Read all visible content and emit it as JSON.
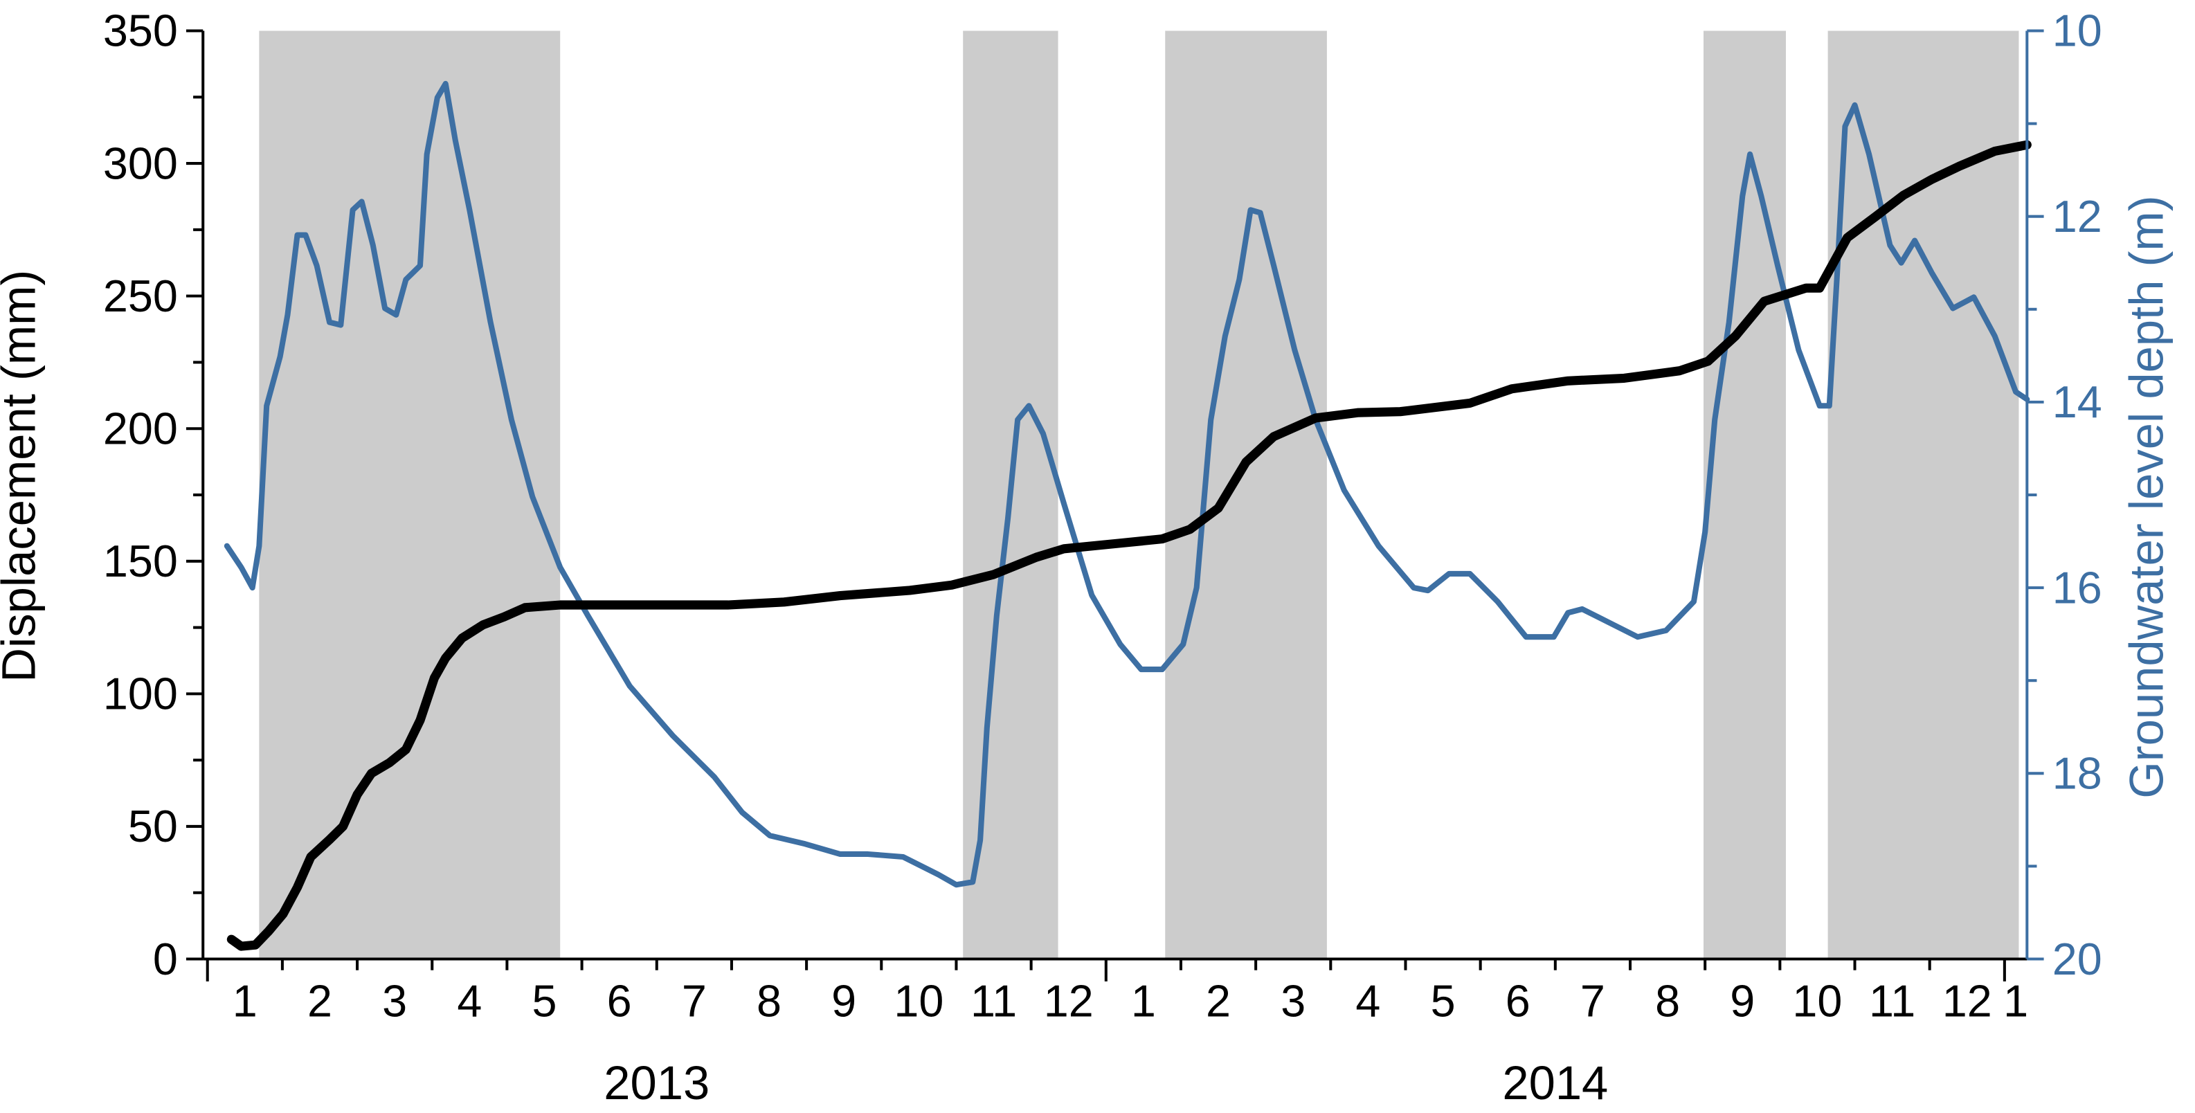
{
  "chart_data": {
    "type": "line",
    "y_label": "Displacement (mm)",
    "y2_label": "Groundwater level depth (m)",
    "xlim": [
      -0.06,
      24.3
    ],
    "xticks": [
      {
        "value": 0.5,
        "label": "1"
      },
      {
        "value": 1.5,
        "label": "2"
      },
      {
        "value": 2.5,
        "label": "3"
      },
      {
        "value": 3.5,
        "label": "4"
      },
      {
        "value": 4.5,
        "label": "5"
      },
      {
        "value": 5.5,
        "label": "6"
      },
      {
        "value": 6.5,
        "label": "7"
      },
      {
        "value": 7.5,
        "label": "8"
      },
      {
        "value": 8.5,
        "label": "9"
      },
      {
        "value": 9.5,
        "label": "10"
      },
      {
        "value": 10.5,
        "label": "11"
      },
      {
        "value": 11.5,
        "label": "12"
      },
      {
        "value": 12.5,
        "label": "1"
      },
      {
        "value": 13.5,
        "label": "2"
      },
      {
        "value": 14.5,
        "label": "3"
      },
      {
        "value": 15.5,
        "label": "4"
      },
      {
        "value": 16.5,
        "label": "5"
      },
      {
        "value": 17.5,
        "label": "6"
      },
      {
        "value": 18.5,
        "label": "7"
      },
      {
        "value": 19.5,
        "label": "8"
      },
      {
        "value": 20.5,
        "label": "9"
      },
      {
        "value": 21.5,
        "label": "10"
      },
      {
        "value": 22.5,
        "label": "11"
      },
      {
        "value": 23.5,
        "label": "12"
      },
      {
        "value": 24.15,
        "label": "1"
      }
    ],
    "x_major_ticks": [
      0,
      12,
      24
    ],
    "x_minor_ticks": [
      1,
      2,
      3,
      4,
      5,
      6,
      7,
      8,
      9,
      10,
      11,
      13,
      14,
      15,
      16,
      17,
      18,
      19,
      20,
      21,
      22,
      23
    ],
    "year_labels": [
      {
        "value": 6,
        "label": "2013"
      },
      {
        "value": 18,
        "label": "2014"
      }
    ],
    "ylim": [
      0,
      350
    ],
    "yticks": [
      0,
      50,
      100,
      150,
      200,
      250,
      300,
      350
    ],
    "y_minor_ticks": [
      25,
      75,
      125,
      175,
      225,
      275,
      325
    ],
    "y2lim": [
      10,
      20
    ],
    "y2_inverted": true,
    "y2ticks": [
      10,
      12,
      14,
      16,
      18,
      20
    ],
    "y2_minor_ticks": [
      11,
      13,
      15,
      17,
      19
    ],
    "y2_color": "#3d6fa3",
    "shaded_periods": [
      [
        0.69,
        4.71
      ],
      [
        10.09,
        11.36
      ],
      [
        12.79,
        14.95
      ],
      [
        19.98,
        21.08
      ],
      [
        21.64,
        24.19
      ]
    ],
    "shade_color": "#cccccc",
    "series": [
      {
        "name": "Displacement",
        "color": "#000000",
        "axis": "y",
        "x": [
          0.32,
          0.45,
          0.64,
          0.82,
          1.01,
          1.2,
          1.38,
          1.63,
          1.81,
          2.0,
          2.19,
          2.43,
          2.65,
          2.84,
          3.03,
          3.18,
          3.4,
          3.68,
          3.96,
          4.24,
          4.71,
          5.27,
          6.02,
          6.95,
          7.7,
          8.45,
          9.38,
          9.94,
          10.5,
          11.07,
          11.44,
          12.19,
          12.75,
          13.12,
          13.5,
          13.87,
          14.24,
          14.8,
          15.36,
          15.93,
          16.86,
          17.42,
          18.17,
          18.92,
          19.66,
          20.04,
          20.41,
          20.79,
          21.35,
          21.53,
          21.9,
          22.28,
          22.65,
          23.03,
          23.4,
          23.87,
          24.3
        ],
        "values": [
          7.4,
          4.8,
          5.3,
          10.6,
          17,
          27,
          38.5,
          45,
          50,
          62,
          70,
          74,
          79,
          90,
          106,
          113.5,
          121,
          126,
          129,
          132.5,
          133.5,
          133.5,
          133.5,
          133.5,
          134.6,
          137,
          139,
          141,
          145,
          151.5,
          154.7,
          156.8,
          158.4,
          162,
          170,
          187.4,
          197,
          204,
          206,
          206.4,
          209.6,
          215,
          218,
          219,
          221.8,
          225.4,
          235,
          248,
          253,
          253,
          272,
          280,
          288,
          294,
          299,
          304.6,
          307
        ]
      },
      {
        "name": "Groundwater level depth",
        "color": "#3d6fa3",
        "axis": "y2",
        "x": [
          0.26,
          0.45,
          0.6,
          0.69,
          0.79,
          0.97,
          1.07,
          1.2,
          1.31,
          1.46,
          1.63,
          1.78,
          1.94,
          2.06,
          2.21,
          2.37,
          2.52,
          2.65,
          2.84,
          2.93,
          3.07,
          3.18,
          3.31,
          3.5,
          3.78,
          4.06,
          4.34,
          4.71,
          5.08,
          5.64,
          6.21,
          6.77,
          7.14,
          7.51,
          7.98,
          8.45,
          8.82,
          9.29,
          9.76,
          10.0,
          10.22,
          10.32,
          10.41,
          10.54,
          10.69,
          10.82,
          10.97,
          11.16,
          11.44,
          11.81,
          12.19,
          12.47,
          12.75,
          13.03,
          13.21,
          13.4,
          13.59,
          13.78,
          13.93,
          14.06,
          14.24,
          14.52,
          14.8,
          15.18,
          15.64,
          16.11,
          16.3,
          16.58,
          16.86,
          17.23,
          17.61,
          17.98,
          18.17,
          18.36,
          18.73,
          19.1,
          19.48,
          19.85,
          20.0,
          20.13,
          20.32,
          20.5,
          20.6,
          20.75,
          20.97,
          21.25,
          21.53,
          21.66,
          21.76,
          21.87,
          22.0,
          22.19,
          22.47,
          22.62,
          22.8,
          23.03,
          23.31,
          23.59,
          23.87,
          24.15,
          24.3
        ],
        "values": [
          15.55,
          15.78,
          16.0,
          15.55,
          14.04,
          13.51,
          13.06,
          12.2,
          12.2,
          12.53,
          13.14,
          13.17,
          11.93,
          11.84,
          12.31,
          12.99,
          13.06,
          12.68,
          12.53,
          11.33,
          10.72,
          10.57,
          11.18,
          11.93,
          13.14,
          14.19,
          15.02,
          15.78,
          16.3,
          17.06,
          17.59,
          18.04,
          18.42,
          18.67,
          18.76,
          18.87,
          18.87,
          18.9,
          19.09,
          19.2,
          19.17,
          18.72,
          17.51,
          16.3,
          15.25,
          14.19,
          14.04,
          14.34,
          15.1,
          16.08,
          16.61,
          16.88,
          16.88,
          16.61,
          16.0,
          14.19,
          13.29,
          12.68,
          11.93,
          11.96,
          12.53,
          13.44,
          14.19,
          14.95,
          15.55,
          16.0,
          16.03,
          15.85,
          15.85,
          16.15,
          16.53,
          16.53,
          16.27,
          16.23,
          16.38,
          16.53,
          16.46,
          16.15,
          15.4,
          14.19,
          13.14,
          11.78,
          11.33,
          11.78,
          12.53,
          13.44,
          14.04,
          14.04,
          12.68,
          11.03,
          10.8,
          11.33,
          12.31,
          12.5,
          12.26,
          12.61,
          12.99,
          12.87,
          13.29,
          13.89,
          13.97
        ]
      }
    ]
  }
}
